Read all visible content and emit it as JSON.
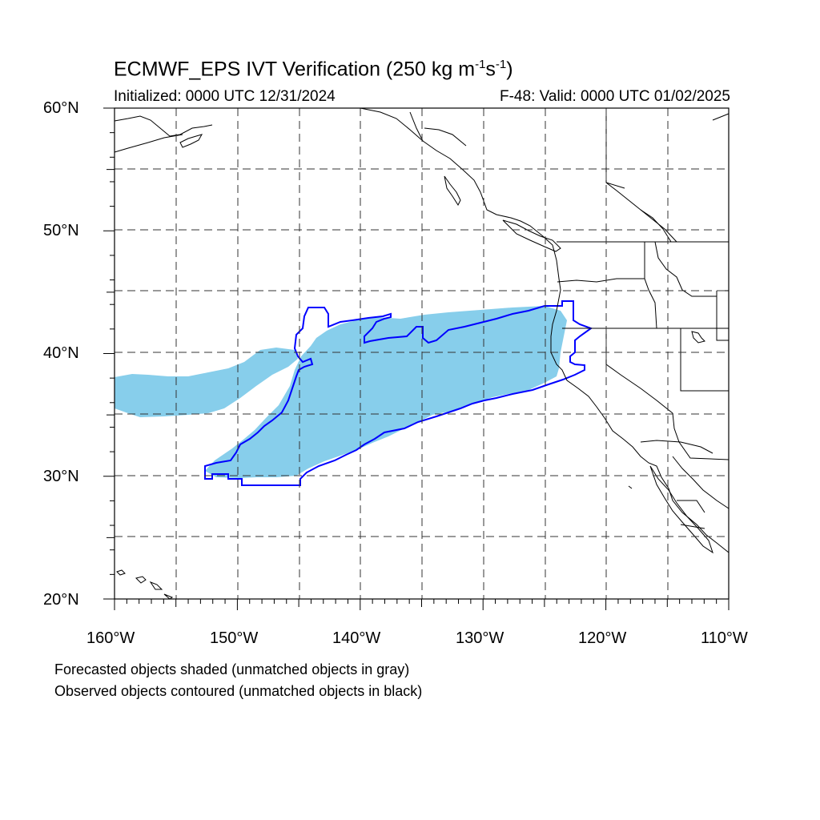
{
  "title": {
    "main": "ECMWF_EPS IVT Verification (250 kg m",
    "exp1": "-1",
    "mid": "s",
    "exp2": "-1",
    "end": ")"
  },
  "subtitle_left": "Initialized: 0000 UTC 12/31/2024",
  "subtitle_right": "F-48: Valid: 0000 UTC 01/02/2025",
  "lat_labels": [
    "60°N",
    "50°N",
    "40°N",
    "30°N",
    "20°N"
  ],
  "lon_labels": [
    "160°W",
    "150°W",
    "140°W",
    "130°W",
    "120°W",
    "110°W"
  ],
  "footnotes": [
    "Forecasted objects shaded (unmatched objects in gray)",
    "Observed objects contoured (unmatched objects in black)"
  ],
  "map": {
    "lon_range": [
      -160,
      -110
    ],
    "lat_range": [
      20,
      60
    ],
    "gridlines": "dashed every 5 degrees",
    "forecast_color": "#87ceeb",
    "observed_color": "#0000ff",
    "coast_color": "#000000"
  }
}
